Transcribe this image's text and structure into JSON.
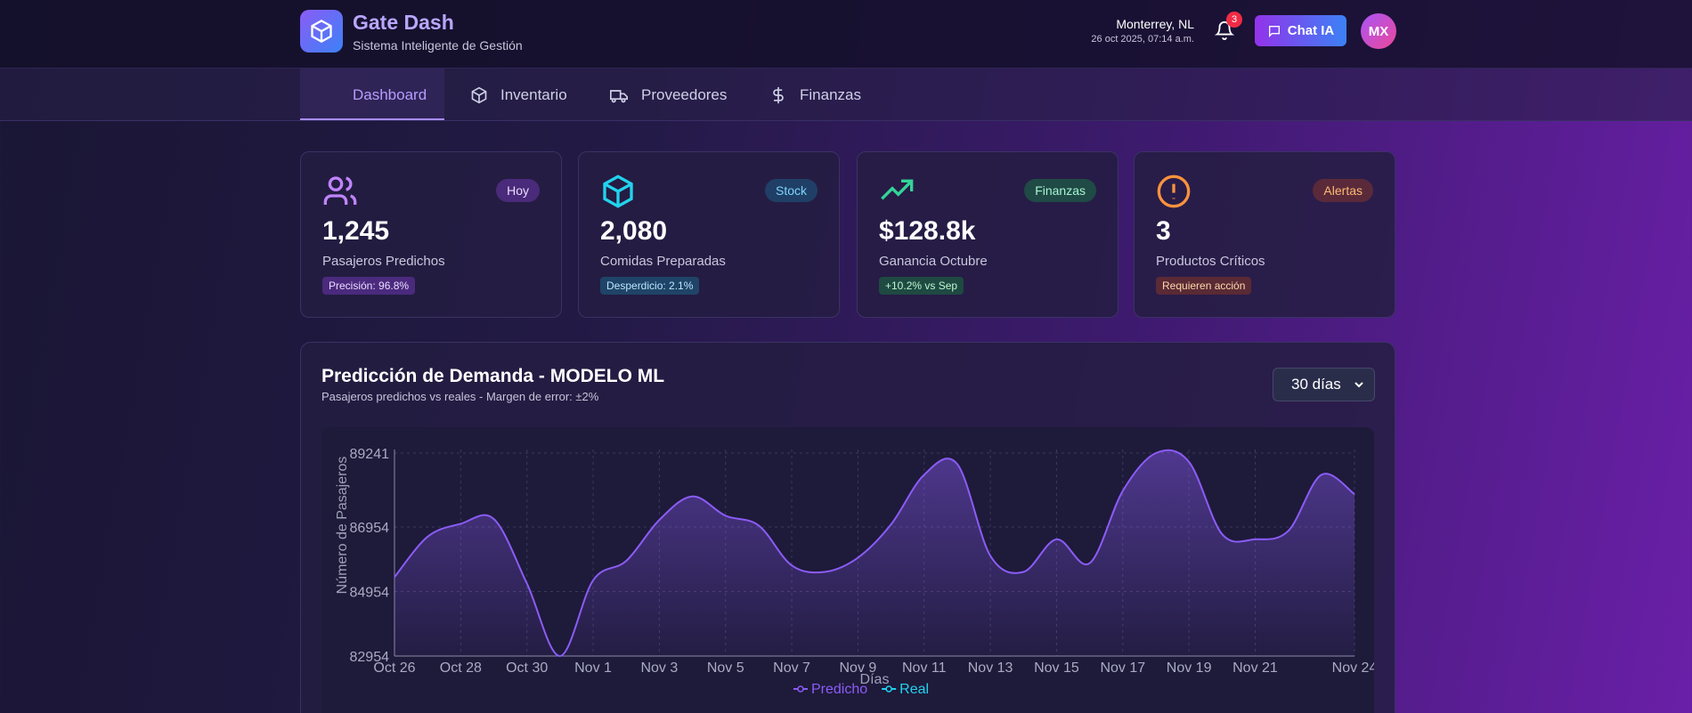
{
  "header": {
    "title": "Gate Dash",
    "subtitle": "Sistema Inteligente de Gestión",
    "location": "Monterrey, NL",
    "datetime": "26 oct 2025, 07:14 a.m.",
    "notifications": "3",
    "chat_button": "Chat IA",
    "avatar": "MX"
  },
  "nav": [
    "Dashboard",
    "Inventario",
    "Proveedores",
    "Finanzas"
  ],
  "cards": [
    {
      "badge": "Hoy",
      "value": "1,245",
      "label": "Pasajeros Predichos",
      "tag": "Precisión: 96.8%"
    },
    {
      "badge": "Stock",
      "value": "2,080",
      "label": "Comidas Preparadas",
      "tag": "Desperdicio: 2.1%"
    },
    {
      "badge": "Finanzas",
      "value": "$128.8k",
      "label": "Ganancia Octubre",
      "tag": "+10.2% vs Sep"
    },
    {
      "badge": "Alertas",
      "value": "3",
      "label": "Productos Críticos",
      "tag": "Requieren acción"
    }
  ],
  "range_select": "30 días",
  "chart_data": {
    "type": "line",
    "title": "Predicción de Demanda - MODELO ML",
    "subtitle": "Pasajeros predichos vs reales - Margen de error: ±2%",
    "x_label": "Días",
    "y_label": "Número de Pasajeros",
    "categories": [
      "Oct 26",
      null,
      "Oct 28",
      null,
      "Oct 30",
      null,
      "Nov 1",
      null,
      "Nov 3",
      null,
      "Nov 5",
      null,
      "Nov 7",
      null,
      "Nov 9",
      null,
      "Nov 11",
      null,
      "Nov 13",
      null,
      "Nov 15",
      null,
      "Nov 17",
      null,
      "Nov 19",
      null,
      "Nov 21",
      null,
      null,
      "Nov 24"
    ],
    "series": [
      {
        "name": "Predicho",
        "color": "#8b5cf6",
        "values": [
          85400,
          86650,
          87050,
          87200,
          85200,
          82954,
          85300,
          85900,
          87170,
          87900,
          87300,
          87000,
          85760,
          85560,
          86000,
          87030,
          88570,
          88900,
          86060,
          85560,
          86570,
          85830,
          88070,
          89241,
          88970,
          86730,
          86570,
          86830,
          88570,
          87970
        ]
      },
      {
        "name": "Real",
        "color": "#22d3ee",
        "values": [
          null,
          null,
          null,
          null,
          null,
          null,
          null,
          null,
          null,
          null,
          null,
          null,
          null,
          null,
          null,
          null,
          null,
          null,
          null,
          null,
          null,
          null,
          null,
          null,
          null,
          null,
          null,
          null,
          null,
          null
        ]
      }
    ],
    "ylim": [
      82954,
      89241
    ],
    "yticks": [
      82954,
      84954,
      86954,
      89241
    ],
    "grid": true,
    "legend": "bottom"
  }
}
